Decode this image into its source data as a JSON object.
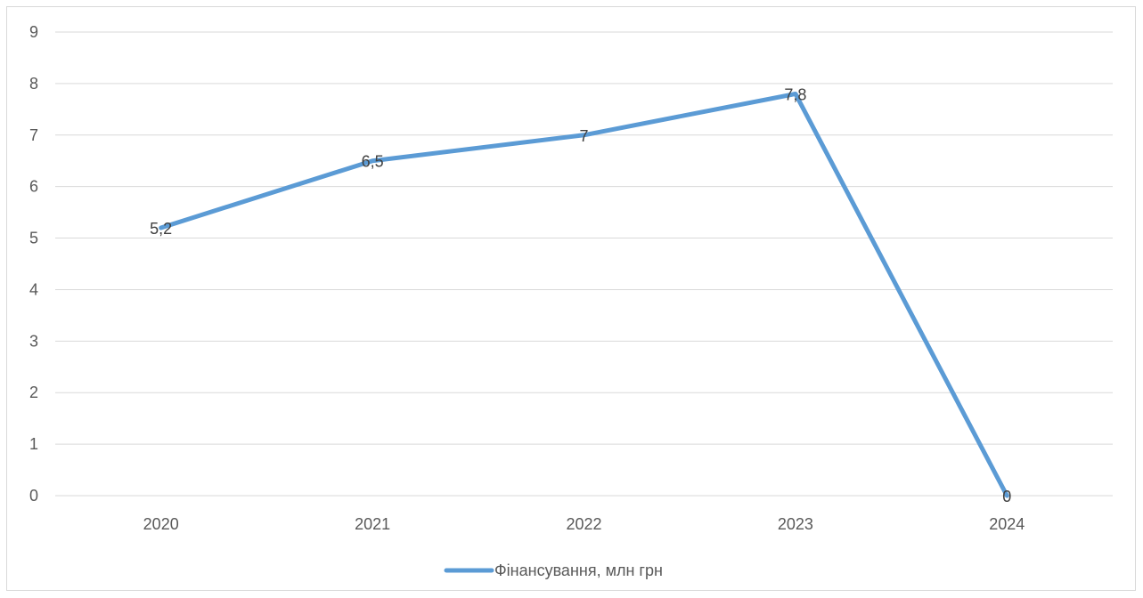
{
  "chart_data": {
    "type": "line",
    "categories": [
      "2020",
      "2021",
      "2022",
      "2023",
      "2024"
    ],
    "series": [
      {
        "name": "Фінансування, млн грн",
        "values": [
          5.2,
          6.5,
          7,
          7.8,
          0
        ],
        "labels": [
          "5,2",
          "6,5",
          "7",
          "7,8",
          "0"
        ],
        "color": "#5b9bd5"
      }
    ],
    "yticks": [
      "0",
      "1",
      "2",
      "3",
      "4",
      "5",
      "6",
      "7",
      "8",
      "9"
    ],
    "ylim": [
      0,
      9
    ],
    "grid": true,
    "legend": "bottom",
    "gridColor": "#d9d9d9",
    "textColor": "#595959"
  }
}
